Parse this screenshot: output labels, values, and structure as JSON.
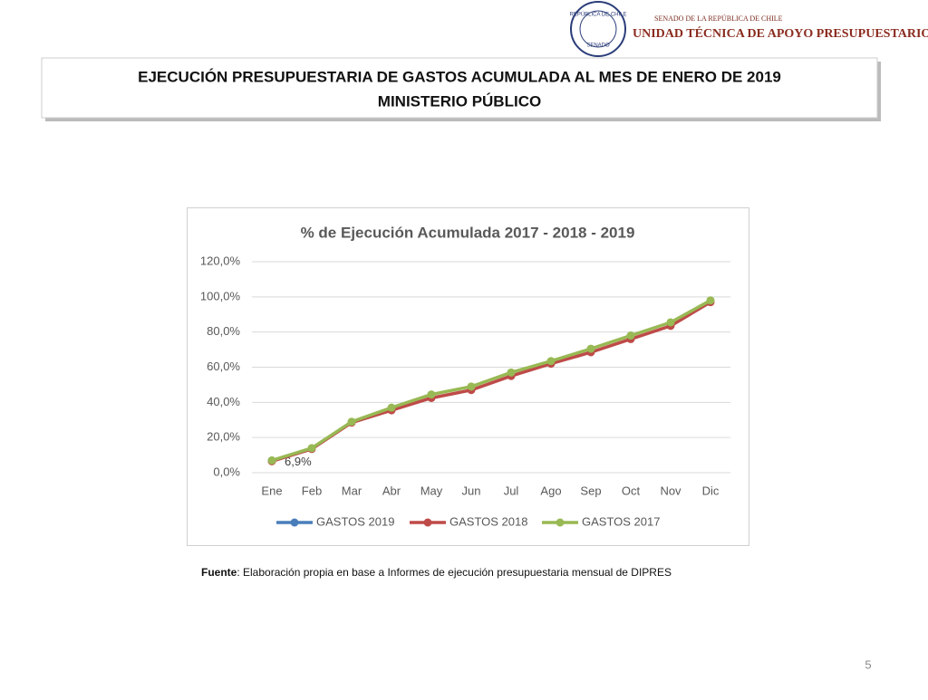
{
  "header": {
    "seal_top": "REPÚBLICA DE CHILE",
    "seal_bottom": "SENADO",
    "small": "SENADO DE LA REPÚBLICA DE CHILE",
    "unit": "UNIDAD TÉCNICA DE APOYO PRESUPUESTARIO"
  },
  "title": [
    "EJECUCIÓN PRESUPUESTARIA DE GASTOS ACUMULADA AL MES DE ENERO DE 2019",
    "MINISTERIO PÚBLICO"
  ],
  "chart_data": {
    "type": "line",
    "title": "% de Ejecución Acumulada 2017 - 2018 - 2019",
    "categories": [
      "Ene",
      "Feb",
      "Mar",
      "Abr",
      "May",
      "Jun",
      "Jul",
      "Ago",
      "Sep",
      "Oct",
      "Nov",
      "Dic"
    ],
    "series": [
      {
        "name": "GASTOS 2019",
        "color": "#4a7ebb",
        "values": [
          6.9,
          null,
          null,
          null,
          null,
          null,
          null,
          null,
          null,
          null,
          null,
          null
        ],
        "value_labels": [
          "6,9%",
          null,
          null,
          null,
          null,
          null,
          null,
          null,
          null,
          null,
          null,
          null
        ]
      },
      {
        "name": "GASTOS 2018",
        "color": "#be4b48",
        "values": [
          6.5,
          13.5,
          28.5,
          35.5,
          42.5,
          47,
          55,
          62,
          68.5,
          76,
          83.5,
          97
        ]
      },
      {
        "name": "GASTOS 2017",
        "color": "#98b954",
        "values": [
          7,
          14,
          29,
          37,
          44.5,
          49,
          57,
          63.5,
          70.5,
          78,
          85.5,
          98
        ]
      }
    ],
    "ylim": [
      0,
      120
    ],
    "yticks": [
      {
        "value": 0,
        "label": "0,0%"
      },
      {
        "value": 20,
        "label": "20,0%"
      },
      {
        "value": 40,
        "label": "40,0%"
      },
      {
        "value": 60,
        "label": "60,0%"
      },
      {
        "value": 80,
        "label": "80,0%"
      },
      {
        "value": 100,
        "label": "100,0%"
      },
      {
        "value": 120,
        "label": "120,0%"
      }
    ],
    "grid": true,
    "legend": "bottom"
  },
  "source": {
    "label": "Fuente",
    "text": ": Elaboración propia en base  a Informes de ejecución presupuestaria mensual de DIPRES"
  },
  "page_number": "5"
}
